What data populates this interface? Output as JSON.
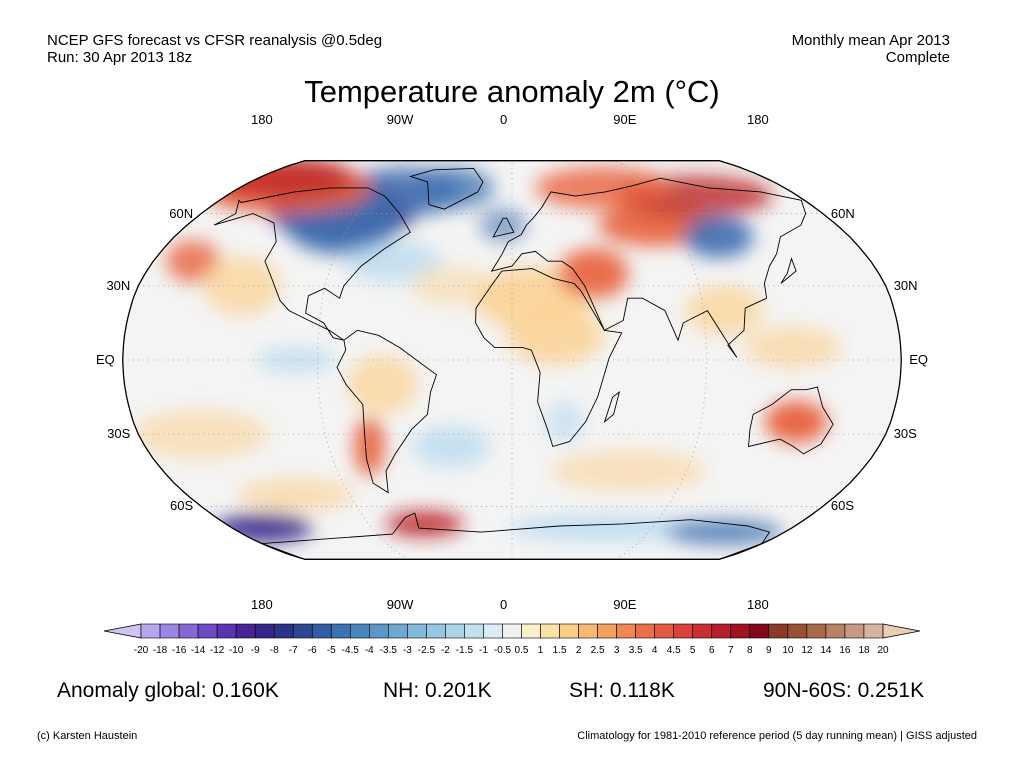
{
  "header": {
    "line1_left": "NCEP GFS forecast vs CFSR reanalysis @0.5deg",
    "line2_left": "Run: 30 Apr 2013 18z",
    "line1_right": "Monthly mean Apr 2013",
    "line2_right": "Complete"
  },
  "title": "Temperature anomaly 2m (°C)",
  "map": {
    "projection": "robinson",
    "lon_labels_top": [
      "180",
      "90W",
      "0",
      "90E",
      "180"
    ],
    "lon_labels_bottom": [
      "180",
      "90W",
      "0",
      "90E",
      "180"
    ],
    "lat_labels_left": [
      "60N",
      "30N",
      "EQ",
      "30S",
      "60S"
    ],
    "lat_labels_right": [
      "60N",
      "30N",
      "EQ",
      "30S",
      "60S"
    ],
    "colors": {
      "cold_strong": "#3b2a8c",
      "cold": "#3f6fb0",
      "cool": "#a9d4ee",
      "neutral": "#f4f4f4",
      "warm": "#fbd49a",
      "hot": "#e8603c",
      "hot_strong": "#b8191c",
      "land_outline": "#000000"
    }
  },
  "colorbar": {
    "ticks": [
      "-20",
      "-18",
      "-16",
      "-14",
      "-12",
      "-10",
      "-9",
      "-8",
      "-7",
      "-6",
      "-5",
      "-4.5",
      "-4",
      "-3.5",
      "-3",
      "-2.5",
      "-2",
      "-1.5",
      "-1",
      "-0.5",
      "0.5",
      "1",
      "1.5",
      "2",
      "2.5",
      "3",
      "3.5",
      "4",
      "4.5",
      "5",
      "6",
      "7",
      "8",
      "9",
      "10",
      "12",
      "14",
      "16",
      "18",
      "20"
    ],
    "colors": [
      "#cfc3f4",
      "#b7a6ee",
      "#9d85e3",
      "#8567d6",
      "#6e4bc6",
      "#5a35b2",
      "#472599",
      "#35248a",
      "#2c3488",
      "#2d4794",
      "#335da2",
      "#3d72b2",
      "#4b86bf",
      "#5b98c9",
      "#6da9d2",
      "#82b8d9",
      "#96c6e1",
      "#abd4e8",
      "#c2e1ef",
      "#dcedf5",
      "#f2f2f2",
      "#fcefc9",
      "#fbe1a8",
      "#f9cf8a",
      "#f7b874",
      "#f4a062",
      "#f08855",
      "#eb704a",
      "#e35a42",
      "#d8433b",
      "#c92f33",
      "#b51e2b",
      "#9e1222",
      "#82091a",
      "#8c3a2a",
      "#9a5036",
      "#a96a4c",
      "#b98165",
      "#c99982",
      "#d8b3a1",
      "#e8ceb2"
    ]
  },
  "stats": {
    "global_label": "Anomaly global:",
    "global_value": "0.160K",
    "nh_label": "NH:",
    "nh_value": "0.201K",
    "sh_label": "SH:",
    "sh_value": "0.118K",
    "arctic_label": "90N-60S:",
    "arctic_value": "0.251K"
  },
  "footer": {
    "left": "(c) Karsten Haustein",
    "right": "Climatology for 1981-2010 reference period (5 day running mean) | GISS adjusted"
  }
}
